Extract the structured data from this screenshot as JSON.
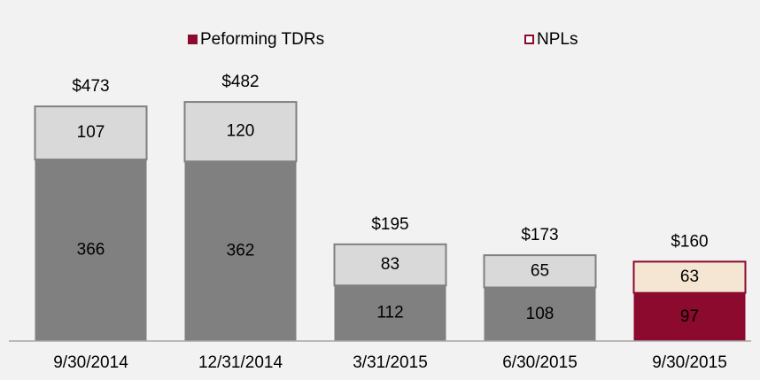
{
  "chart_data": {
    "type": "stacked_bar",
    "categories": [
      "9/30/2014",
      "12/31/2014",
      "3/31/2015",
      "6/30/2015",
      "9/30/2015"
    ],
    "series": [
      {
        "name": "Peforming TDRs",
        "color": "#8b0a2e",
        "values": [
          366,
          362,
          112,
          108,
          97
        ],
        "bar_colors": [
          "#808080",
          "#808080",
          "#808080",
          "#808080",
          "#8b0a2e"
        ]
      },
      {
        "name": "NPLs",
        "color": "#8b0a2e",
        "values": [
          107,
          120,
          83,
          65,
          63
        ],
        "bar_colors": [
          "#d9d9d9",
          "#d9d9d9",
          "#d9d9d9",
          "#d9d9d9",
          "#f5e6d3"
        ]
      }
    ],
    "total_labels": [
      "$473",
      "$482",
      "$195",
      "$173",
      "$160"
    ],
    "ylim": [
      0,
      500
    ],
    "legend": "top"
  }
}
